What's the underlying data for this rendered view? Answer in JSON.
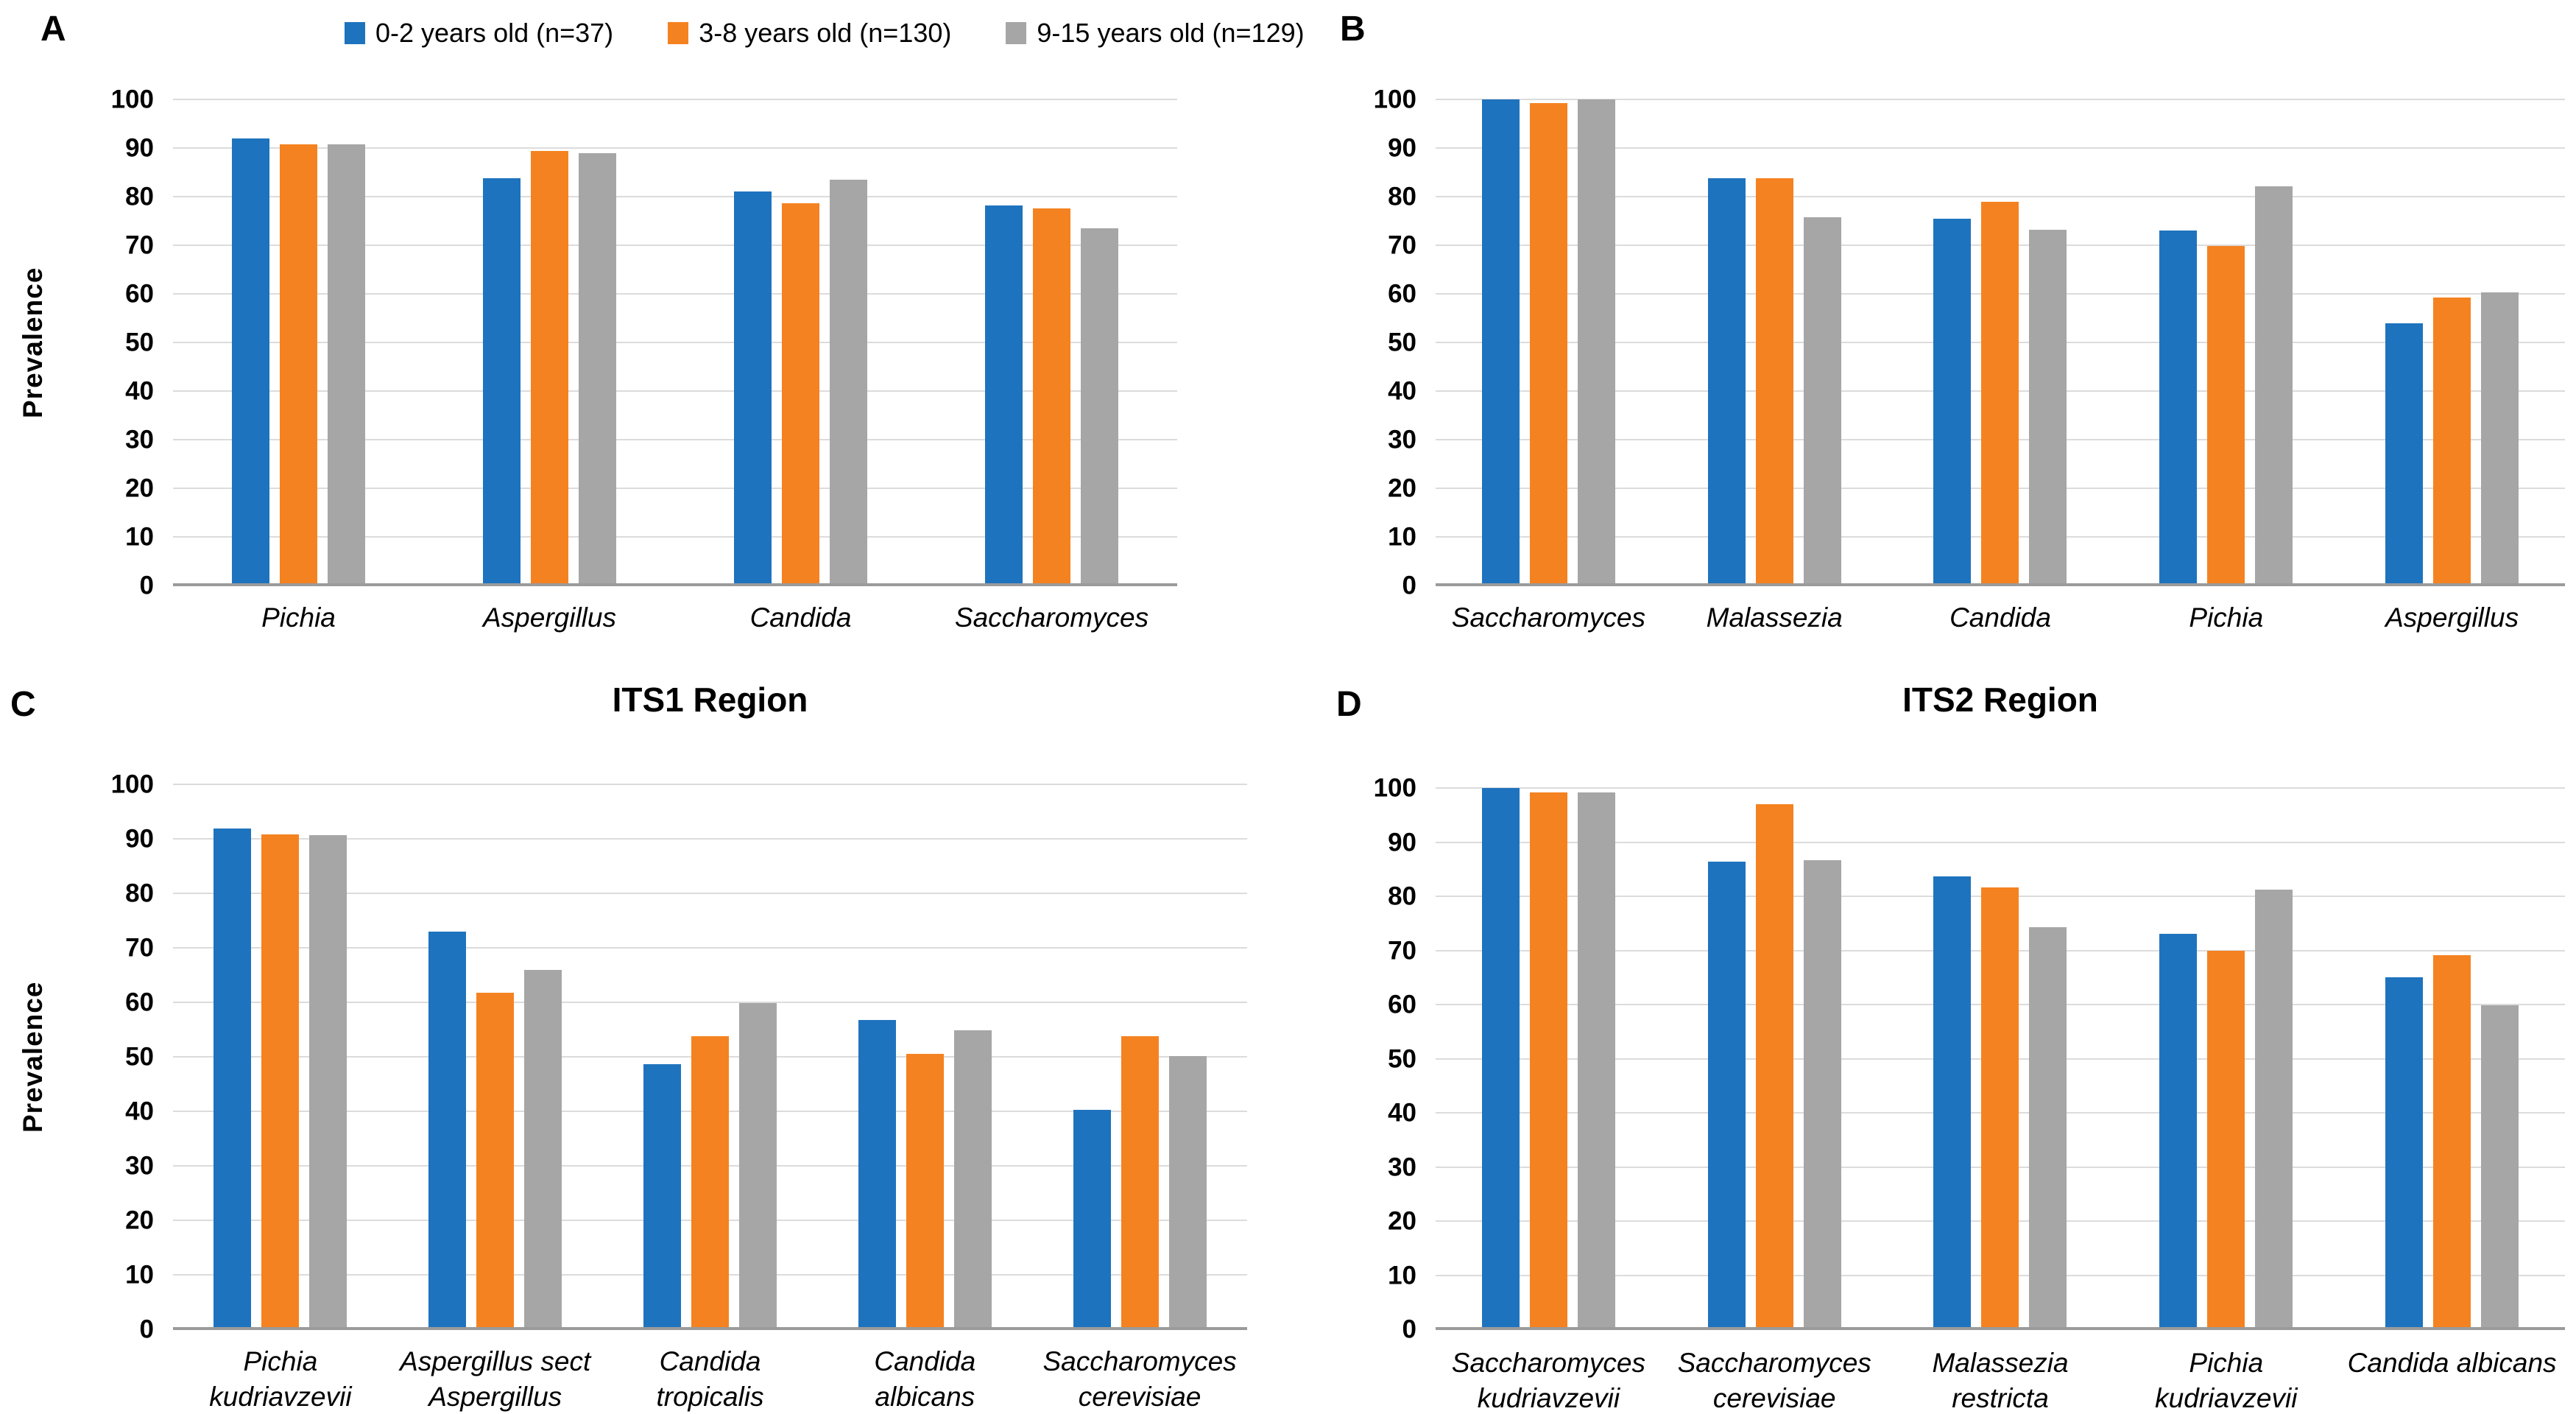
{
  "figure": {
    "series": [
      {
        "name": "0-2 years old (n=37)",
        "color": "#1E73BE"
      },
      {
        "name": "3-8 years old (n=130)",
        "color": "#F58220"
      },
      {
        "name": "9-15 years old (n=129)",
        "color": "#A6A6A6"
      }
    ],
    "y_axis": {
      "label": "Prevalence",
      "min": 0,
      "max": 100,
      "step": 10
    },
    "grid_color": "#DCDCDC",
    "axis_color": "#9B9B9B"
  },
  "chart_data": [
    {
      "panel": "A",
      "letter": "A",
      "type": "bar",
      "title": "",
      "ylabel": "Prevalence",
      "ylim": [
        0,
        100
      ],
      "grid": true,
      "legend_position": "top",
      "categories": [
        "Pichia",
        "Aspergillus",
        "Candida",
        "Saccharomyces"
      ],
      "series": [
        {
          "name": "0-2 years old (n=37)",
          "values": [
            91.9,
            83.8,
            81.1,
            78.2
          ]
        },
        {
          "name": "3-8 years old (n=130)",
          "values": [
            90.8,
            89.4,
            78.6,
            77.6
          ]
        },
        {
          "name": "9-15 years old (n=129)",
          "values": [
            90.7,
            88.9,
            83.5,
            73.5
          ]
        }
      ]
    },
    {
      "panel": "B",
      "letter": "B",
      "type": "bar",
      "title": "",
      "ylabel": "",
      "ylim": [
        0,
        100
      ],
      "grid": true,
      "categories": [
        "Saccharomyces",
        "Malassezia",
        "Candida",
        "Pichia",
        "Aspergillus"
      ],
      "series": [
        {
          "name": "0-2 years old (n=37)",
          "values": [
            100,
            83.8,
            75.5,
            73.0,
            54.0
          ]
        },
        {
          "name": "3-8 years old (n=130)",
          "values": [
            99.2,
            83.8,
            79.0,
            69.8,
            59.2
          ]
        },
        {
          "name": "9-15 years old (n=129)",
          "values": [
            100,
            75.8,
            73.2,
            82.1,
            60.3
          ]
        }
      ]
    },
    {
      "panel": "C",
      "letter": "C",
      "type": "bar",
      "title": "ITS1 Region",
      "ylabel": "Prevalence",
      "ylim": [
        0,
        100
      ],
      "grid": true,
      "categories": [
        "Pichia\nkudriavzevii",
        "Aspergillus sect\nAspergillus",
        "Candida\ntropicalis",
        "Candida\nalbicans",
        "Saccharomyces\ncerevisiae"
      ],
      "series": [
        {
          "name": "0-2 years old (n=37)",
          "values": [
            91.9,
            73.0,
            48.7,
            56.7,
            40.3
          ]
        },
        {
          "name": "3-8 years old (n=130)",
          "values": [
            90.8,
            61.7,
            53.8,
            50.6,
            53.8
          ]
        },
        {
          "name": "9-15 years old (n=129)",
          "values": [
            90.7,
            65.9,
            59.9,
            54.9,
            50.2
          ]
        }
      ]
    },
    {
      "panel": "D",
      "letter": "D",
      "type": "bar",
      "title": "ITS2 Region",
      "ylabel": "",
      "ylim": [
        0,
        100
      ],
      "grid": true,
      "categories": [
        "Saccharomyces\nkudriavzevii",
        "Saccharomyces\ncerevisiae",
        "Malassezia\nrestricta",
        "Pichia\nkudriavzevii",
        "Candida albicans"
      ],
      "series": [
        {
          "name": "0-2 years old (n=37)",
          "values": [
            100,
            86.4,
            83.7,
            73.0,
            65.0
          ]
        },
        {
          "name": "3-8 years old (n=130)",
          "values": [
            99.2,
            97.0,
            81.6,
            69.9,
            69.1
          ]
        },
        {
          "name": "9-15 years old (n=129)",
          "values": [
            99.2,
            86.7,
            74.3,
            81.2,
            59.9
          ]
        }
      ]
    }
  ]
}
